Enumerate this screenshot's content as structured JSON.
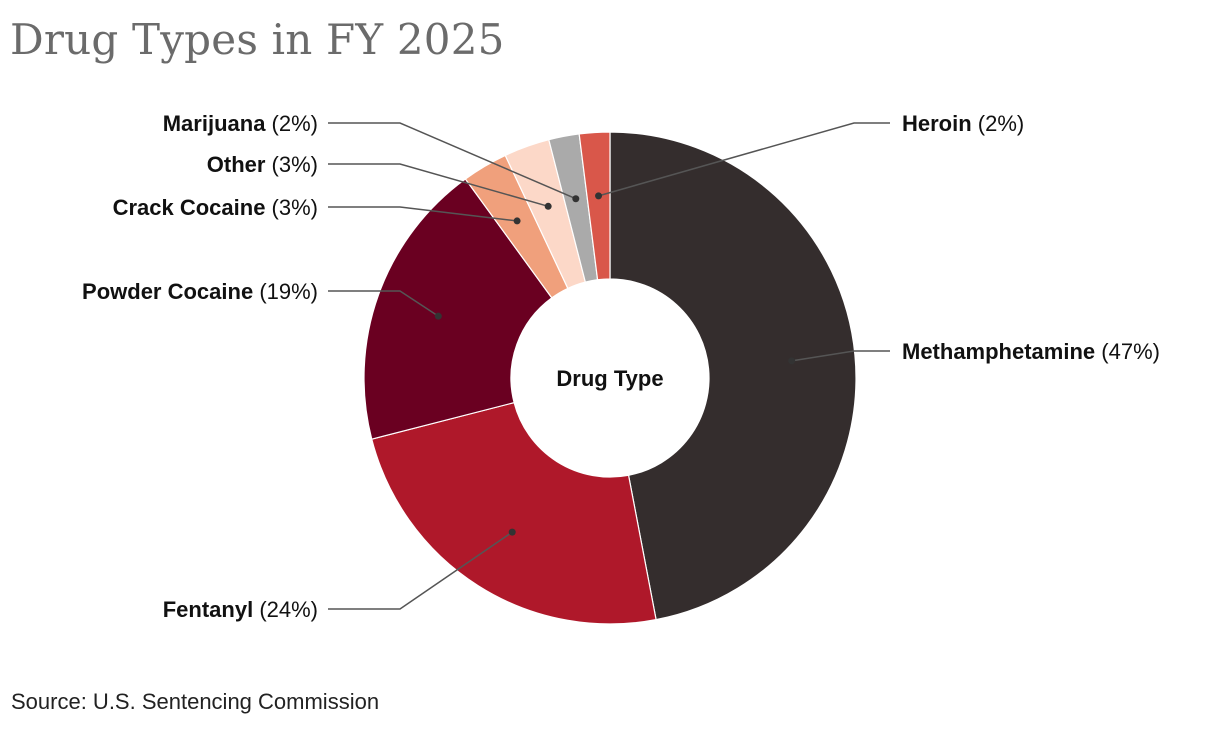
{
  "title": "Drug Types in FY 2025",
  "source": "Source: U.S. Sentencing Commission",
  "chart_data": {
    "type": "pie",
    "variant": "donut",
    "center_label": "Drug Type",
    "legend": "none (callout labels)",
    "slices": [
      {
        "label": "Methamphetamine",
        "value": 47,
        "display": "(47%)",
        "color": "#342d2d"
      },
      {
        "label": "Fentanyl",
        "value": 24,
        "display": "(24%)",
        "color": "#af182a"
      },
      {
        "label": "Powder Cocaine",
        "value": 19,
        "display": "(19%)",
        "color": "#6a0021"
      },
      {
        "label": "Crack Cocaine",
        "value": 3,
        "display": "(3%)",
        "color": "#f0a07c"
      },
      {
        "label": "Other",
        "value": 3,
        "display": "(3%)",
        "color": "#fcd8c8"
      },
      {
        "label": "Marijuana",
        "value": 2,
        "display": "(2%)",
        "color": "#aaaaaa"
      },
      {
        "label": "Heroin",
        "value": 2,
        "display": "(2%)",
        "color": "#d9574a"
      }
    ]
  }
}
